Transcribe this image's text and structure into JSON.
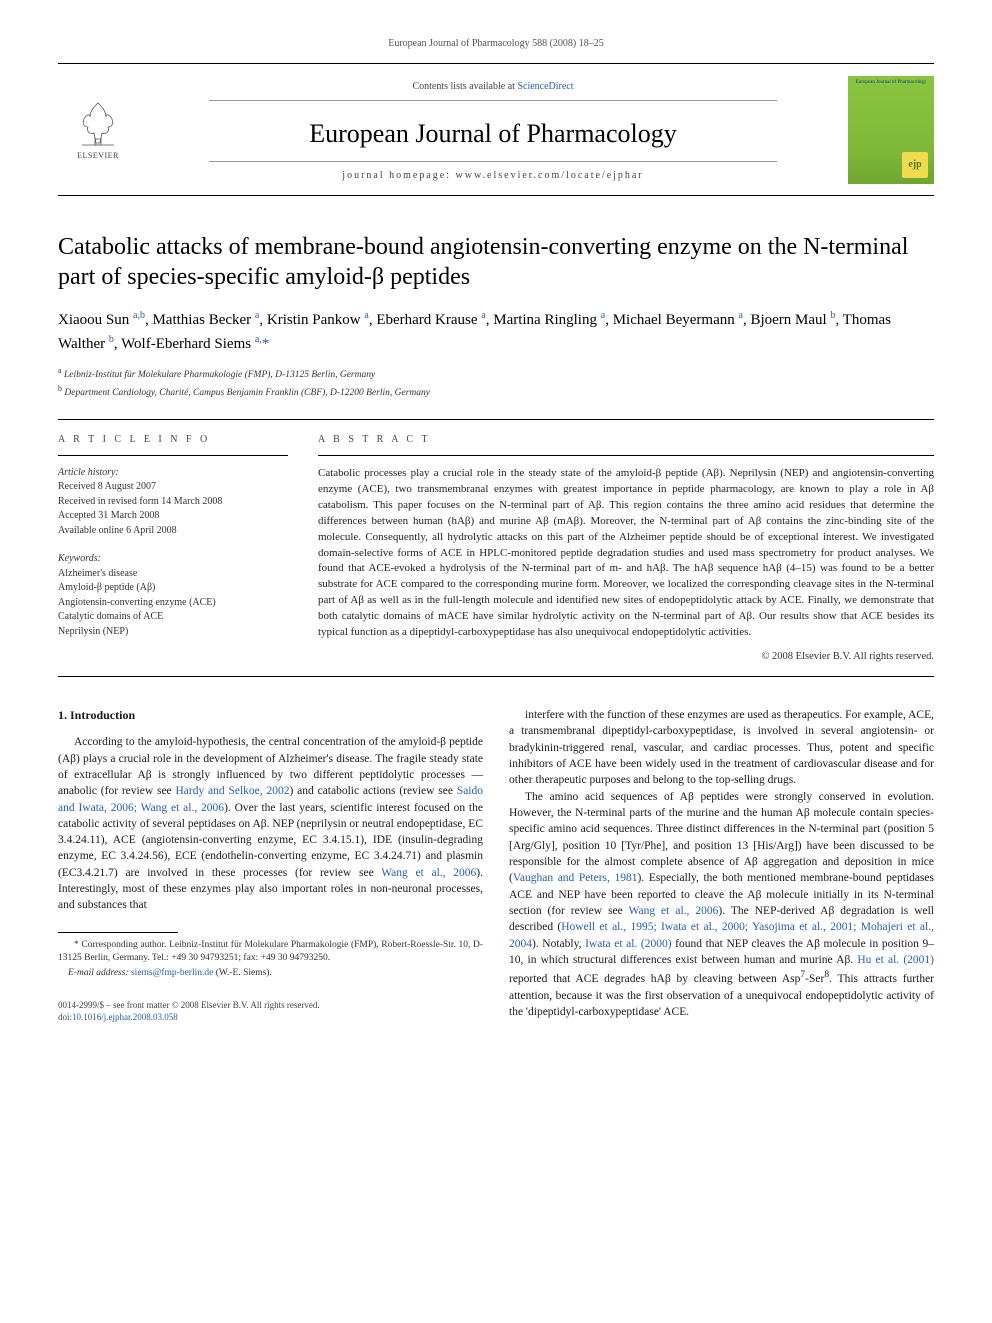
{
  "header": {
    "top_line": "European Journal of Pharmacology 588 (2008) 18–25",
    "contents_prefix": "Contents lists available at ",
    "contents_link": "ScienceDirect",
    "journal_name": "European Journal of Pharmacology",
    "homepage_label": "journal homepage: ",
    "homepage_url": "www.elsevier.com/locate/ejphar",
    "publisher": "ELSEVIER",
    "cover_title": "European Journal of Pharmacology",
    "cover_badge": "ejp"
  },
  "article": {
    "title": "Catabolic attacks of membrane-bound angiotensin-converting enzyme on the N-terminal part of species-specific amyloid-β peptides",
    "authors_html": "Xiaoou Sun <sup>a,b</sup>, Matthias Becker <sup>a</sup>, Kristin Pankow <sup>a</sup>, Eberhard Krause <sup>a</sup>, Martina Ringling <sup>a</sup>, Michael Beyermann <sup>a</sup>, Bjoern Maul <sup>b</sup>, Thomas Walther <sup>b</sup>, Wolf-Eberhard Siems <sup>a,</sup><span class='corr'>*</span>",
    "affiliations": [
      {
        "sup": "a",
        "text": "Leibniz-Institut für Molekulare Pharmakologie (FMP), D-13125 Berlin, Germany"
      },
      {
        "sup": "b",
        "text": "Department Cardiology, Charité, Campus Benjamin Franklin (CBF), D-12200 Berlin, Germany"
      }
    ]
  },
  "info": {
    "heading": "A R T I C L E   I N F O",
    "history_label": "Article history:",
    "history": [
      "Received 8 August 2007",
      "Received in revised form 14 March 2008",
      "Accepted 31 March 2008",
      "Available online 6 April 2008"
    ],
    "keywords_label": "Keywords:",
    "keywords": [
      "Alzheimer's disease",
      "Amyloid-β peptide (Aβ)",
      "Angiotensin-converting enzyme (ACE)",
      "Catalytic domains of ACE",
      "Neprilysin (NEP)"
    ]
  },
  "abstract": {
    "heading": "A B S T R A C T",
    "text": "Catabolic processes play a crucial role in the steady state of the amyloid-β peptide (Aβ). Neprilysin (NEP) and angiotensin-converting enzyme (ACE), two transmembranal enzymes with greatest importance in peptide pharmacology, are known to play a role in Aβ catabolism. This paper focuses on the N-terminal part of Aβ. This region contains the three amino acid residues that determine the differences between human (hAβ) and murine Aβ (mAβ). Moreover, the N-terminal part of Aβ contains the zinc-binding site of the molecule. Consequently, all hydrolytic attacks on this part of the Alzheimer peptide should be of exceptional interest. We investigated domain-selective forms of ACE in HPLC-monitored peptide degradation studies and used mass spectrometry for product analyses. We found that ACE-evoked a hydrolysis of the N-terminal part of m- and hAβ. The hAβ sequence hAβ (4–15) was found to be a better substrate for ACE compared to the corresponding murine form. Moreover, we localized the corresponding cleavage sites in the N-terminal part of Aβ as well as in the full-length molecule and identified new sites of endopeptidolytic attack by ACE. Finally, we demonstrate that both catalytic domains of mACE have similar hydrolytic activity on the N-terminal part of Aβ. Our results show that ACE besides its typical function as a dipeptidyl-carboxypeptidase has also unequivocal endopeptidolytic activities.",
    "copyright": "© 2008 Elsevier B.V. All rights reserved."
  },
  "body": {
    "section_heading": "1. Introduction",
    "col1_html": "According to the amyloid-hypothesis, the central concentration of the amyloid-β peptide (Aβ) plays a crucial role in the development of Alzheimer's disease. The fragile steady state of extracellular Aβ is strongly influenced by two different peptidolytic processes — anabolic (for review see <span class='ref-link'>Hardy and Selkoe, 2002</span>) and catabolic actions (review see <span class='ref-link'>Saido and Iwata, 2006; Wang et al., 2006</span>). Over the last years, scientific interest focused on the catabolic activity of several peptidases on Aβ. NEP (neprilysin or neutral endopeptidase, EC 3.4.24.11), ACE (angiotensin-converting enzyme, EC 3.4.15.1), IDE (insulin-degrading enzyme, EC 3.4.24.56), ECE (endothelin-converting enzyme, EC 3.4.24.71) and plasmin (EC3.4.21.7) are involved in these processes (for review see <span class='ref-link'>Wang et al., 2006</span>). Interestingly, most of these enzymes play also important roles in non-neuronal processes, and substances that",
    "col2_p1_html": "interfere with the function of these enzymes are used as therapeutics. For example, ACE, a transmembranal dipeptidyl-carboxypeptidase, is involved in several angiotensin- or bradykinin-triggered renal, vascular, and cardiac processes. Thus, potent and specific inhibitors of ACE have been widely used in the treatment of cardiovascular disease and for other therapeutic purposes and belong to the top-selling drugs.",
    "col2_p2_html": "The amino acid sequences of Aβ peptides were strongly conserved in evolution. However, the N-terminal parts of the murine and the human Aβ molecule contain species-specific amino acid sequences. Three distinct differences in the N-terminal part (position 5 [Arg/Gly], position 10 [Tyr/Phe], and position 13 [His/Arg]) have been discussed to be responsible for the almost complete absence of Aβ aggregation and deposition in mice (<span class='ref-link'>Vaughan and Peters, 1981</span>). Especially, the both mentioned membrane-bound peptidases ACE and NEP have been reported to cleave the Aβ molecule initially in its N-terminal section (for review see <span class='ref-link'>Wang et al., 2006</span>). The NEP-derived Aβ degradation is well described (<span class='ref-link'>Howell et al., 1995; Iwata et al., 2000; Yasojima et al., 2001; Mohajeri et al., 2004</span>). Notably, <span class='ref-link'>Iwata et al. (2000)</span> found that NEP cleaves the Aβ molecule in position 9–10, in which structural differences exist between human and murine Aβ. <span class='ref-link'>Hu et al. (2001)</span> reported that ACE degrades hAβ by cleaving between Asp<sup>7</sup>-Ser<sup>8</sup>. This attracts further attention, because it was the first observation of a unequivocal endopeptidolytic activity of the 'dipeptidyl-carboxypeptidase' ACE."
  },
  "footnote": {
    "corr": "* Corresponding author. Leibniz-Institut für Molekulare Pharmakologie (FMP), Robert-Roessle-Str. 10, D-13125 Berlin, Germany. Tel.: +49 30 94793251; fax: +49 30 94793250.",
    "email_label": "E-mail address: ",
    "email": "siems@fmp-berlin.de",
    "email_person": " (W.-E. Siems)."
  },
  "bottom": {
    "line1": "0014-2999/$ – see front matter © 2008 Elsevier B.V. All rights reserved.",
    "doi_label": "doi:",
    "doi": "10.1016/j.ejphar.2008.03.058"
  },
  "colors": {
    "link": "#2a5db0",
    "cover_bg": "#8bc53f",
    "badge_bg": "#f0db4f",
    "text": "#000000"
  }
}
